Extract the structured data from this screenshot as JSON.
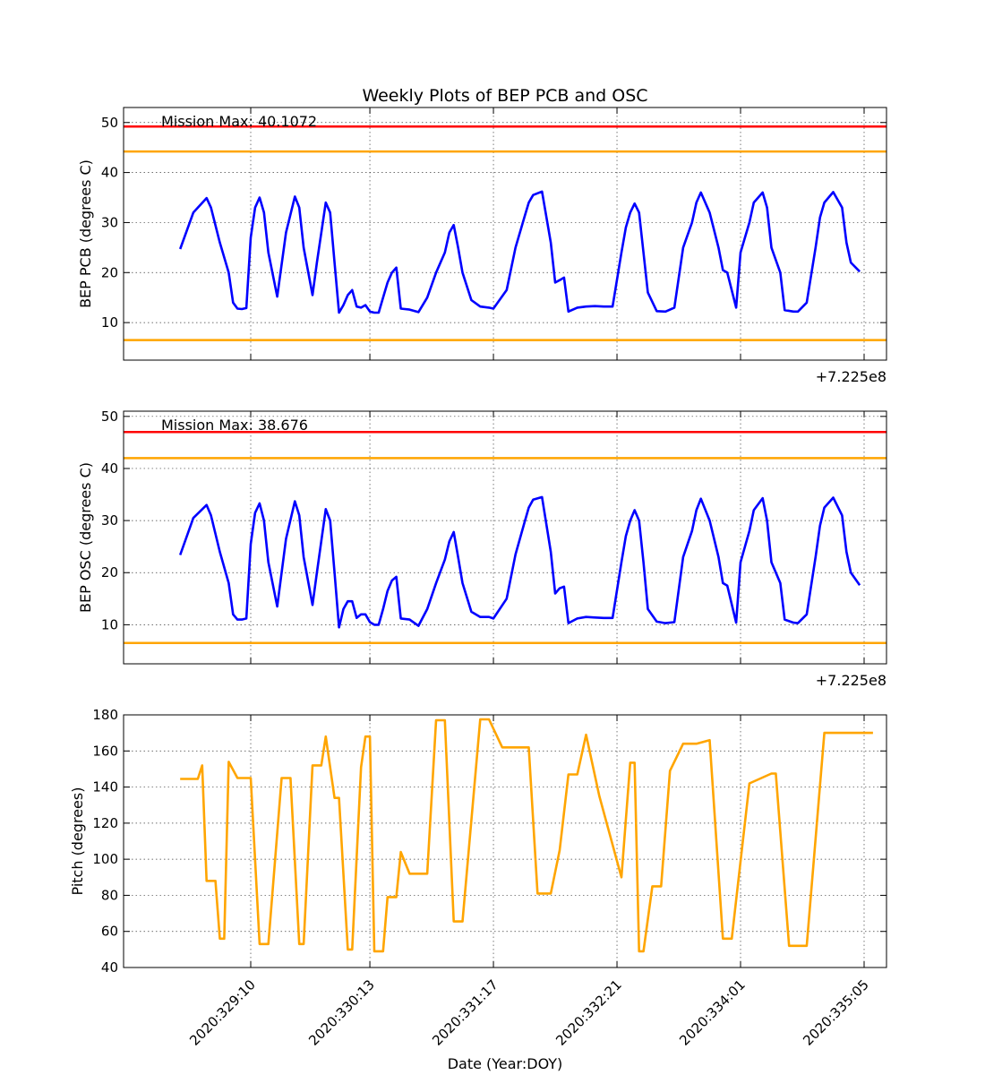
{
  "title": "Weekly Plots of BEP PCB and OSC",
  "xlabel": "Date (Year:DOY)",
  "x_tick_labels": [
    "2020:329:10",
    "2020:330:13",
    "2020:331:17",
    "2020:332:21",
    "2020:334:01",
    "2020:335:05"
  ],
  "colors": {
    "data": "#0000ff",
    "limit_red": "#ff0000",
    "limit_orange": "#ffa500",
    "pitch": "#ffa500"
  },
  "chart_data": [
    {
      "type": "line",
      "panel": "pcb",
      "ylabel": "BEP PCB (degrees C)",
      "ylim": [
        2.5,
        53
      ],
      "y_ticks": [
        10,
        20,
        30,
        40,
        50
      ],
      "x_offset_label": "+7.225e8",
      "annotation": "Mission Max: 40.1072",
      "limits": [
        {
          "value": 49.2,
          "color": "red"
        },
        {
          "value": 44.2,
          "color": "orange"
        },
        {
          "value": 6.5,
          "color": "orange"
        }
      ],
      "x": [
        "2020:328:18",
        "2020:328:21",
        "2020:329:00",
        "2020:329:01",
        "2020:329:03",
        "2020:329:05",
        "2020:329:06",
        "2020:329:07",
        "2020:329:08",
        "2020:329:09",
        "2020:329:10",
        "2020:329:11",
        "2020:329:12",
        "2020:329:13",
        "2020:329:14",
        "2020:329:16",
        "2020:329:18",
        "2020:329:20",
        "2020:329:21",
        "2020:329:22",
        "2020:330:00",
        "2020:330:01",
        "2020:330:03",
        "2020:330:04",
        "2020:330:05",
        "2020:330:06",
        "2020:330:07",
        "2020:330:08",
        "2020:330:09",
        "2020:330:10",
        "2020:330:11",
        "2020:330:12",
        "2020:330:13",
        "2020:330:14",
        "2020:330:15",
        "2020:330:16",
        "2020:330:17",
        "2020:330:18",
        "2020:330:19",
        "2020:330:20",
        "2020:330:22",
        "2020:331:00",
        "2020:331:02",
        "2020:331:04",
        "2020:331:06",
        "2020:331:07",
        "2020:331:08",
        "2020:331:09",
        "2020:331:10",
        "2020:331:12",
        "2020:331:14",
        "2020:331:16",
        "2020:331:17",
        "2020:331:20",
        "2020:331:22",
        "2020:332:00",
        "2020:332:01",
        "2020:332:02",
        "2020:332:04",
        "2020:332:06",
        "2020:332:07",
        "2020:332:08",
        "2020:332:09",
        "2020:332:10",
        "2020:332:12",
        "2020:332:14",
        "2020:332:16",
        "2020:332:18",
        "2020:332:20",
        "2020:332:22",
        "2020:332:23",
        "2020:333:00",
        "2020:333:01",
        "2020:333:02",
        "2020:333:03",
        "2020:333:04",
        "2020:333:06",
        "2020:333:08",
        "2020:333:10",
        "2020:333:12",
        "2020:333:14",
        "2020:333:15",
        "2020:333:16",
        "2020:333:18",
        "2020:333:20",
        "2020:333:21",
        "2020:333:22",
        "2020:334:00",
        "2020:334:01",
        "2020:334:03",
        "2020:334:04",
        "2020:334:06",
        "2020:334:07",
        "2020:334:08",
        "2020:334:10",
        "2020:334:11",
        "2020:334:13",
        "2020:334:14",
        "2020:334:16",
        "2020:334:18",
        "2020:334:19",
        "2020:334:20",
        "2020:334:22",
        "2020:335:00",
        "2020:335:01",
        "2020:335:02",
        "2020:335:04"
      ],
      "y": [
        24.7,
        32.0,
        34.9,
        33.0,
        26.0,
        20.0,
        14.0,
        12.8,
        12.7,
        12.9,
        27.0,
        33.0,
        35.0,
        32.0,
        24.0,
        15.2,
        28.0,
        35.2,
        33.0,
        25.0,
        15.5,
        22.0,
        34.0,
        32.0,
        22.0,
        12.0,
        13.5,
        15.5,
        16.5,
        13.2,
        13.0,
        13.5,
        12.2,
        12.0,
        12.0,
        15.0,
        18.0,
        20.0,
        21.0,
        12.8,
        12.6,
        12.1,
        15.0,
        20.0,
        24.0,
        28.0,
        29.5,
        25.0,
        20.0,
        14.5,
        13.2,
        13.0,
        12.8,
        16.5,
        25.0,
        31.0,
        34.0,
        35.5,
        36.2,
        26.0,
        18.0,
        18.5,
        19.0,
        12.2,
        13.0,
        13.2,
        13.3,
        13.2,
        13.2,
        24.0,
        29.0,
        32.0,
        33.8,
        32.0,
        24.0,
        16.0,
        12.3,
        12.2,
        13.0,
        25.0,
        30.0,
        34.0,
        36.0,
        32.0,
        25.0,
        20.5,
        20.0,
        13.0,
        24.0,
        30.0,
        34.0,
        36.0,
        33.0,
        25.0,
        20.0,
        12.5,
        12.2,
        12.2,
        14.0,
        25.0,
        31.0,
        34.0,
        36.1,
        33.0,
        26.0,
        22.0,
        20.2
      ]
    },
    {
      "type": "line",
      "panel": "osc",
      "ylabel": "BEP OSC (degrees C)",
      "ylim": [
        2.5,
        51
      ],
      "y_ticks": [
        10,
        20,
        30,
        40,
        50
      ],
      "x_offset_label": "+7.225e8",
      "annotation": "Mission Max: 38.676",
      "limits": [
        {
          "value": 47.0,
          "color": "red"
        },
        {
          "value": 42.0,
          "color": "orange"
        },
        {
          "value": 6.5,
          "color": "orange"
        }
      ],
      "x": [
        "2020:328:18",
        "2020:328:21",
        "2020:329:00",
        "2020:329:01",
        "2020:329:03",
        "2020:329:05",
        "2020:329:06",
        "2020:329:07",
        "2020:329:08",
        "2020:329:09",
        "2020:329:10",
        "2020:329:11",
        "2020:329:12",
        "2020:329:13",
        "2020:329:14",
        "2020:329:16",
        "2020:329:18",
        "2020:329:20",
        "2020:329:21",
        "2020:329:22",
        "2020:330:00",
        "2020:330:01",
        "2020:330:03",
        "2020:330:04",
        "2020:330:05",
        "2020:330:06",
        "2020:330:07",
        "2020:330:08",
        "2020:330:09",
        "2020:330:10",
        "2020:330:11",
        "2020:330:12",
        "2020:330:13",
        "2020:330:14",
        "2020:330:15",
        "2020:330:16",
        "2020:330:17",
        "2020:330:18",
        "2020:330:19",
        "2020:330:20",
        "2020:330:22",
        "2020:331:00",
        "2020:331:02",
        "2020:331:04",
        "2020:331:06",
        "2020:331:07",
        "2020:331:08",
        "2020:331:09",
        "2020:331:10",
        "2020:331:12",
        "2020:331:14",
        "2020:331:16",
        "2020:331:17",
        "2020:331:20",
        "2020:331:22",
        "2020:332:00",
        "2020:332:01",
        "2020:332:02",
        "2020:332:04",
        "2020:332:06",
        "2020:332:07",
        "2020:332:08",
        "2020:332:09",
        "2020:332:10",
        "2020:332:12",
        "2020:332:14",
        "2020:332:16",
        "2020:332:18",
        "2020:332:20",
        "2020:332:22",
        "2020:332:23",
        "2020:333:00",
        "2020:333:01",
        "2020:333:02",
        "2020:333:03",
        "2020:333:04",
        "2020:333:06",
        "2020:333:08",
        "2020:333:10",
        "2020:333:12",
        "2020:333:14",
        "2020:333:15",
        "2020:333:16",
        "2020:333:18",
        "2020:333:20",
        "2020:333:21",
        "2020:333:22",
        "2020:334:00",
        "2020:334:01",
        "2020:334:03",
        "2020:334:04",
        "2020:334:06",
        "2020:334:07",
        "2020:334:08",
        "2020:334:10",
        "2020:334:11",
        "2020:334:13",
        "2020:334:14",
        "2020:334:16",
        "2020:334:18",
        "2020:334:19",
        "2020:334:20",
        "2020:334:22",
        "2020:335:00",
        "2020:335:01",
        "2020:335:02",
        "2020:335:04"
      ],
      "y": [
        23.4,
        30.5,
        33.0,
        31.0,
        24.0,
        18.0,
        12.0,
        11.0,
        11.0,
        11.2,
        25.5,
        31.5,
        33.3,
        30.0,
        22.0,
        13.5,
        26.5,
        33.7,
        31.0,
        23.0,
        13.8,
        20.0,
        32.2,
        30.0,
        20.0,
        9.5,
        13.0,
        14.5,
        14.5,
        11.3,
        12.0,
        12.0,
        10.5,
        10.0,
        10.0,
        13.0,
        16.5,
        18.5,
        19.2,
        11.2,
        11.0,
        9.8,
        13.0,
        18.0,
        22.5,
        26.0,
        27.8,
        23.0,
        18.0,
        12.5,
        11.5,
        11.5,
        11.2,
        15.0,
        23.5,
        29.5,
        32.5,
        34.0,
        34.5,
        24.0,
        16.0,
        17.0,
        17.3,
        10.3,
        11.2,
        11.5,
        11.4,
        11.3,
        11.3,
        22.0,
        27.0,
        30.0,
        32.0,
        30.0,
        22.0,
        13.0,
        10.6,
        10.3,
        10.5,
        23.0,
        28.0,
        32.0,
        34.2,
        30.0,
        23.0,
        18.0,
        17.5,
        10.4,
        22.0,
        28.0,
        32.0,
        34.3,
        30.0,
        22.0,
        18.0,
        11.0,
        10.4,
        10.3,
        12.0,
        23.0,
        29.0,
        32.5,
        34.4,
        31.0,
        24.0,
        20.0,
        17.6
      ]
    },
    {
      "type": "line",
      "panel": "pitch",
      "ylabel": "Pitch (degrees)",
      "ylim": [
        40,
        180
      ],
      "y_ticks": [
        40,
        60,
        80,
        100,
        120,
        140,
        160,
        180
      ],
      "series_color": "orange",
      "x": [
        "2020:328:18",
        "2020:328:22",
        "2020:328:23",
        "2020:329:00",
        "2020:329:02",
        "2020:329:03",
        "2020:329:04",
        "2020:329:05",
        "2020:329:07",
        "2020:329:10",
        "2020:329:12",
        "2020:329:14",
        "2020:329:17",
        "2020:329:19",
        "2020:329:21",
        "2020:329:22",
        "2020:330:00",
        "2020:330:02",
        "2020:330:03",
        "2020:330:05",
        "2020:330:06",
        "2020:330:08",
        "2020:330:09",
        "2020:330:11",
        "2020:330:12",
        "2020:330:13",
        "2020:330:14",
        "2020:330:16",
        "2020:330:17",
        "2020:330:19",
        "2020:330:20",
        "2020:330:22",
        "2020:331:00",
        "2020:331:02",
        "2020:331:04",
        "2020:331:06",
        "2020:331:08",
        "2020:331:10",
        "2020:331:14",
        "2020:331:16",
        "2020:331:19",
        "2020:332:01",
        "2020:332:03",
        "2020:332:06",
        "2020:332:08",
        "2020:332:10",
        "2020:332:12",
        "2020:332:14",
        "2020:332:17",
        "2020:332:22",
        "2020:333:00",
        "2020:333:01",
        "2020:333:02",
        "2020:333:03",
        "2020:333:05",
        "2020:333:07",
        "2020:333:09",
        "2020:333:12",
        "2020:333:15",
        "2020:333:18",
        "2020:333:21",
        "2020:333:23",
        "2020:334:03",
        "2020:334:08",
        "2020:334:09",
        "2020:334:12",
        "2020:334:16",
        "2020:334:20",
        "2020:335:00",
        "2020:335:02",
        "2020:335:04",
        "2020:335:07"
      ],
      "y": [
        144.5,
        144.5,
        152.0,
        88.0,
        88.0,
        56.0,
        56.0,
        154.0,
        145.0,
        145.0,
        53.0,
        53.0,
        145.0,
        145.0,
        53.0,
        53.0,
        152.0,
        152.0,
        168.0,
        134.0,
        134.0,
        50.0,
        50.0,
        151.0,
        168.0,
        168.0,
        49.0,
        49.0,
        79.0,
        79.0,
        104.0,
        92.0,
        92.0,
        92.0,
        177.0,
        177.0,
        65.5,
        65.5,
        177.5,
        177.5,
        162.0,
        162.0,
        81.0,
        81.0,
        105.0,
        147.0,
        147.0,
        169.0,
        135.0,
        90.0,
        153.5,
        153.5,
        49.0,
        49.0,
        85.0,
        85.0,
        149.0,
        164.0,
        164.0,
        166.0,
        56.0,
        56.0,
        142.0,
        147.5,
        147.5,
        52.0,
        52.0,
        170.0,
        170.0,
        170.0,
        170.0,
        170.0
      ]
    }
  ]
}
